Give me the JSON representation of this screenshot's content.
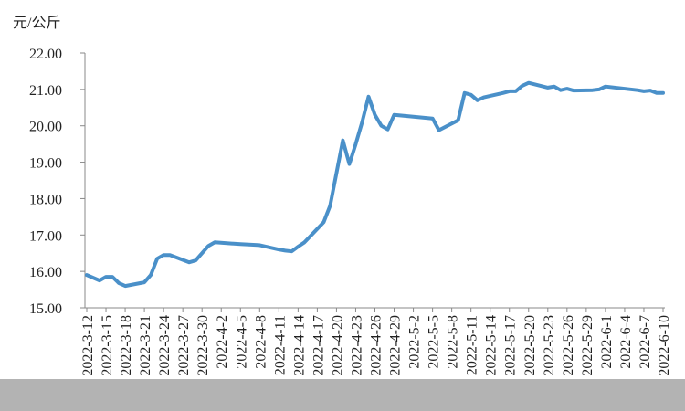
{
  "chart_data": {
    "type": "line",
    "y_label": "元/公斤",
    "x": [
      "2022-3-12",
      "2022-3-14",
      "2022-3-15",
      "2022-3-16",
      "2022-3-17",
      "2022-3-18",
      "2022-3-21",
      "2022-3-22",
      "2022-3-23",
      "2022-3-24",
      "2022-3-25",
      "2022-3-28",
      "2022-3-29",
      "2022-3-30",
      "2022-3-31",
      "2022-4-1",
      "2022-4-5",
      "2022-4-8",
      "2022-4-11",
      "2022-4-12",
      "2022-4-13",
      "2022-4-14",
      "2022-4-15",
      "2022-4-18",
      "2022-4-19",
      "2022-4-20",
      "2022-4-21",
      "2022-4-22",
      "2022-4-23",
      "2022-4-24",
      "2022-4-25",
      "2022-4-26",
      "2022-4-27",
      "2022-4-28",
      "2022-4-29",
      "2022-5-5",
      "2022-5-6",
      "2022-5-9",
      "2022-5-10",
      "2022-5-11",
      "2022-5-12",
      "2022-5-13",
      "2022-5-16",
      "2022-5-17",
      "2022-5-18",
      "2022-5-19",
      "2022-5-20",
      "2022-5-23",
      "2022-5-24",
      "2022-5-25",
      "2022-5-26",
      "2022-5-27",
      "2022-5-30",
      "2022-5-31",
      "2022-6-1",
      "2022-6-6",
      "2022-6-7",
      "2022-6-8",
      "2022-6-9",
      "2022-6-10"
    ],
    "series": [
      {
        "color": "#4a90c9",
        "values": [
          15.9,
          15.75,
          15.85,
          15.85,
          15.68,
          15.6,
          15.7,
          15.9,
          16.35,
          16.45,
          16.45,
          16.25,
          16.3,
          16.5,
          16.7,
          16.8,
          16.75,
          16.72,
          16.6,
          16.57,
          16.55,
          16.68,
          16.8,
          17.35,
          17.8,
          18.7,
          19.6,
          18.95,
          19.5,
          20.1,
          20.8,
          20.3,
          20.0,
          19.9,
          20.3,
          20.2,
          19.88,
          20.15,
          20.9,
          20.85,
          20.7,
          20.78,
          20.9,
          20.95,
          20.95,
          21.1,
          21.18,
          21.05,
          21.08,
          20.98,
          21.02,
          20.97,
          20.98,
          21.0,
          21.08,
          20.98,
          20.95,
          20.97,
          20.9,
          20.9
        ]
      }
    ],
    "xlim": [
      "2022-3-12",
      "2022-6-10"
    ],
    "xticks": [
      "2022-3-12",
      "2022-3-15",
      "2022-3-18",
      "2022-3-21",
      "2022-3-24",
      "2022-3-27",
      "2022-3-30",
      "2022-4-2",
      "2022-4-5",
      "2022-4-8",
      "2022-4-11",
      "2022-4-14",
      "2022-4-17",
      "2022-4-20",
      "2022-4-23",
      "2022-4-26",
      "2022-4-29",
      "2022-5-2",
      "2022-5-5",
      "2022-5-8",
      "2022-5-11",
      "2022-5-14",
      "2022-5-17",
      "2022-5-20",
      "2022-5-23",
      "2022-5-26",
      "2022-5-29",
      "2022-6-1",
      "2022-6-4",
      "2022-6-7",
      "2022-6-10"
    ],
    "ylim": [
      15,
      22
    ],
    "yticks": [
      {
        "value": 15,
        "label": "15.00"
      },
      {
        "value": 16,
        "label": "16.00"
      },
      {
        "value": 17,
        "label": "17.00"
      },
      {
        "value": 18,
        "label": "18.00"
      },
      {
        "value": 19,
        "label": "19.00"
      },
      {
        "value": 20,
        "label": "20.00"
      },
      {
        "value": 21,
        "label": "21.00"
      },
      {
        "value": 22,
        "label": "22.00"
      }
    ],
    "grid": false
  }
}
